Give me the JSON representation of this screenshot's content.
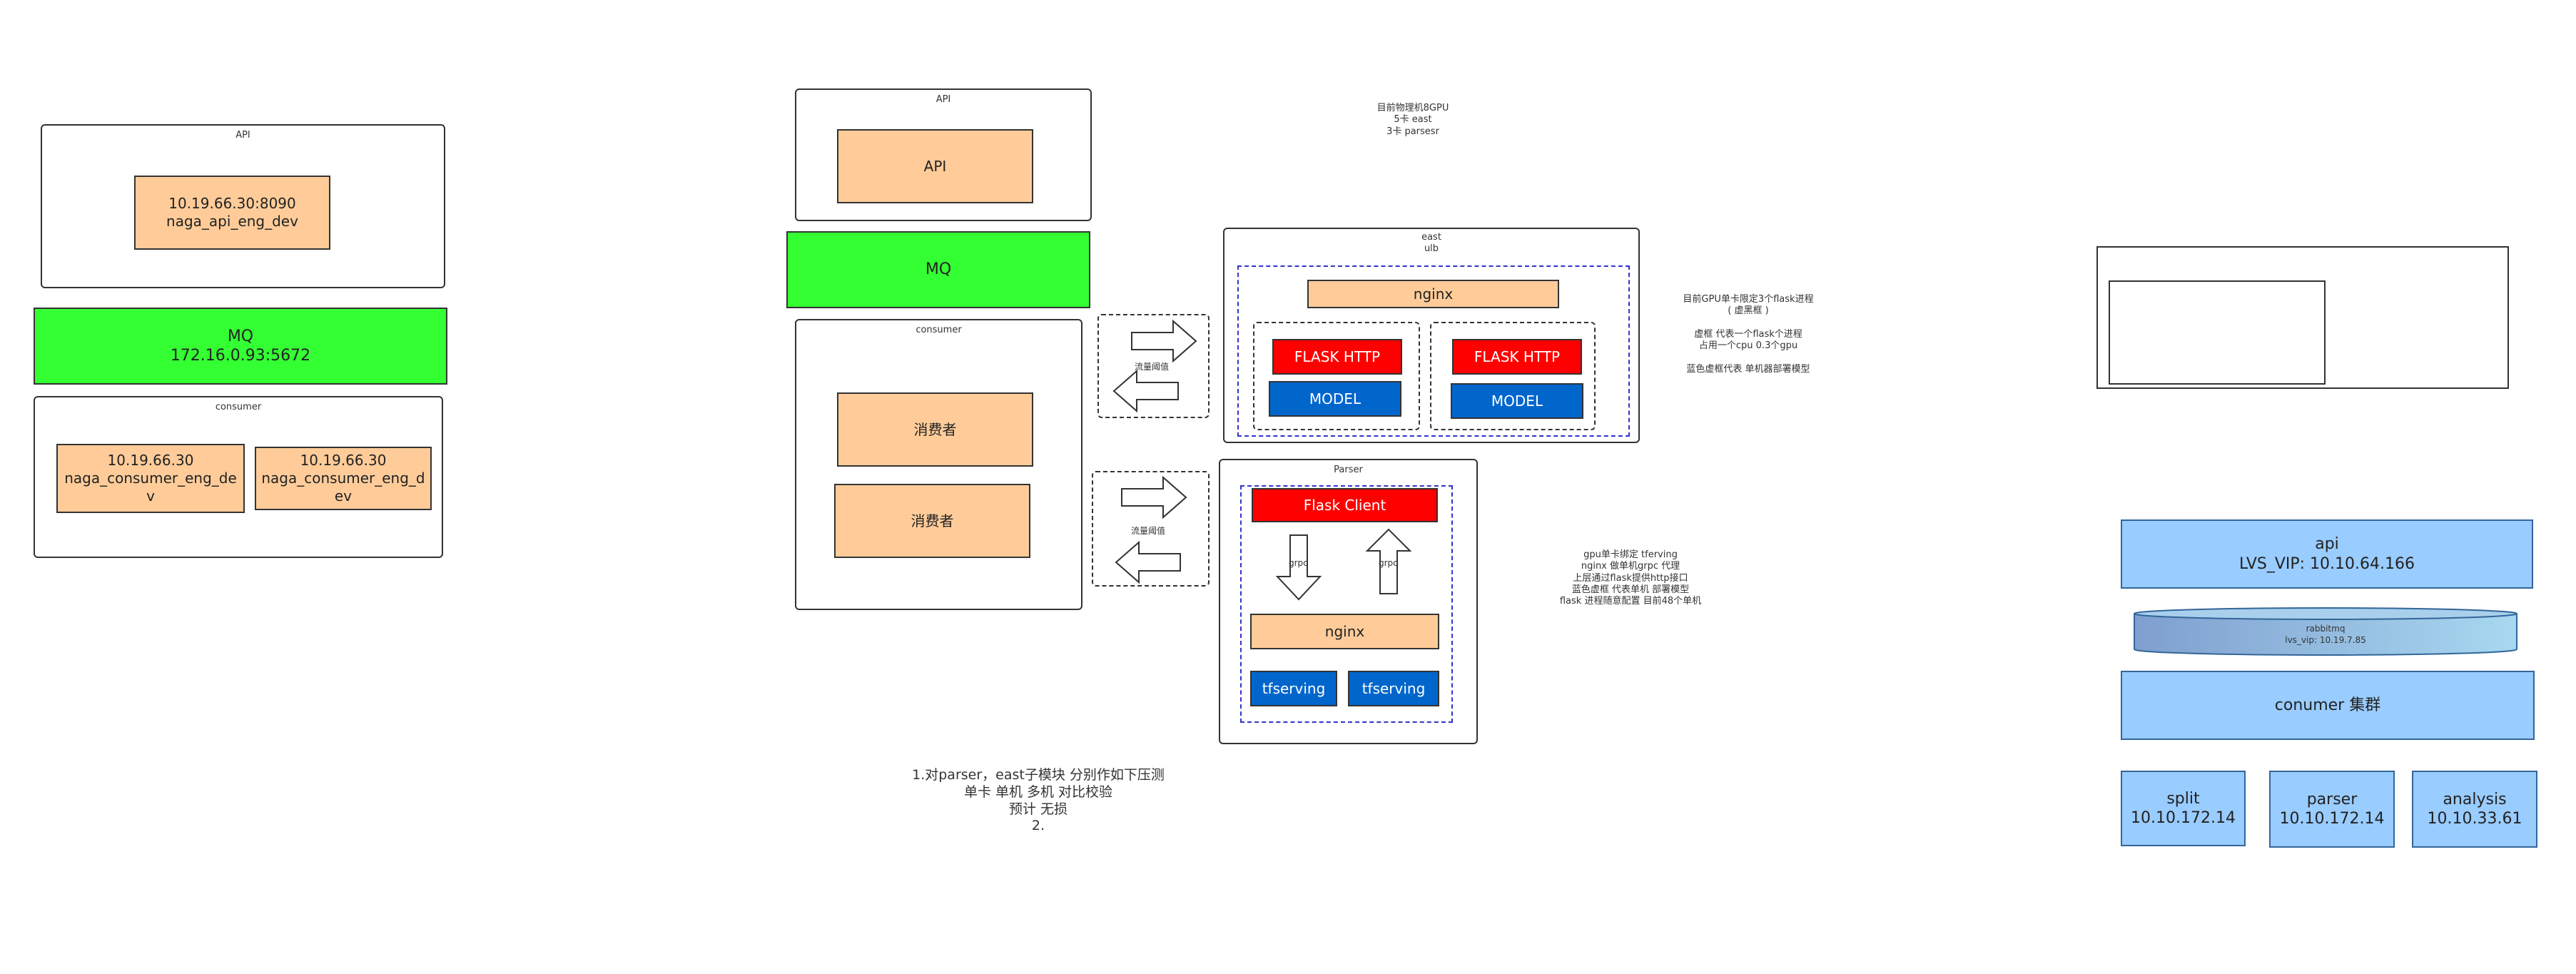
{
  "left_diagram": {
    "api_frame_title": "API",
    "api_box": "10.19.66.30:8090\nnaga_api_eng_dev",
    "mq_box": "MQ\n172.16.0.93:5672",
    "consumer_frame_title": "consumer",
    "consumer_box_1": "10.19.66.30\nnaga_consumer_eng_de\nv",
    "consumer_box_2": "10.19.66.30\nnaga_consumer_eng_d\nev"
  },
  "middle_diagram": {
    "api_frame_title": "API",
    "api_box": "API",
    "mq_box": "MQ",
    "consumer_frame_title": "consumer",
    "consumer_box_1": "消费者",
    "consumer_box_2": "消费者",
    "arrow_label_1": "流量阈值",
    "arrow_label_2": "流量阈值"
  },
  "gpu_note": "目前物理机8GPU\n5卡 east\n3卡 parsesr",
  "east": {
    "title": "east\nulb",
    "nginx": "nginx",
    "flask_1": "FLASK HTTP",
    "model_1": "MODEL",
    "flask_2": "FLASK HTTP",
    "model_2": "MODEL"
  },
  "east_note": "目前GPU单卡限定3个flask进程\n( 虚黑框 )\n\n虚框 代表一个flask个进程\n占用一个cpu 0.3个gpu\n\n蓝色虚框代表 单机器部署模型",
  "parser": {
    "title": "Parser",
    "flask_client": "Flask Client",
    "grpc_down": "grpc",
    "grpc_up": "grpc",
    "nginx": "nginx",
    "tfserving_1": "tfserving",
    "tfserving_2": "tfserving"
  },
  "parser_note": "gpu单卡绑定 tferving\nnginx 做单机grpc 代理\n上层通过flask提供http接口\n蓝色虚框 代表单机 部署模型\nflask 进程随意配置 目前48个单机",
  "plan_note": "1.对parser，east子模块 分别作如下压测\n单卡  单机  多机  对比校验\n预计 无损\n2.",
  "right_diagram": {
    "api_box": "api\nLVS_VIP: 10.10.64.166",
    "rabbitmq_name": "rabbitmq",
    "rabbitmq_vip": "lvs_vip: 10.19.7.85",
    "consumer_cluster": "conumer 集群",
    "split_box": "split\n10.10.172.14",
    "parser_box": "parser\n10.10.172.14",
    "analysis_box": "analysis\n10.10.33.61"
  },
  "colors": {
    "peach": "#ffcc99",
    "green": "#33ff33",
    "red": "#ff0000",
    "blue": "#0066cc",
    "light_blue": "#99ccff"
  }
}
